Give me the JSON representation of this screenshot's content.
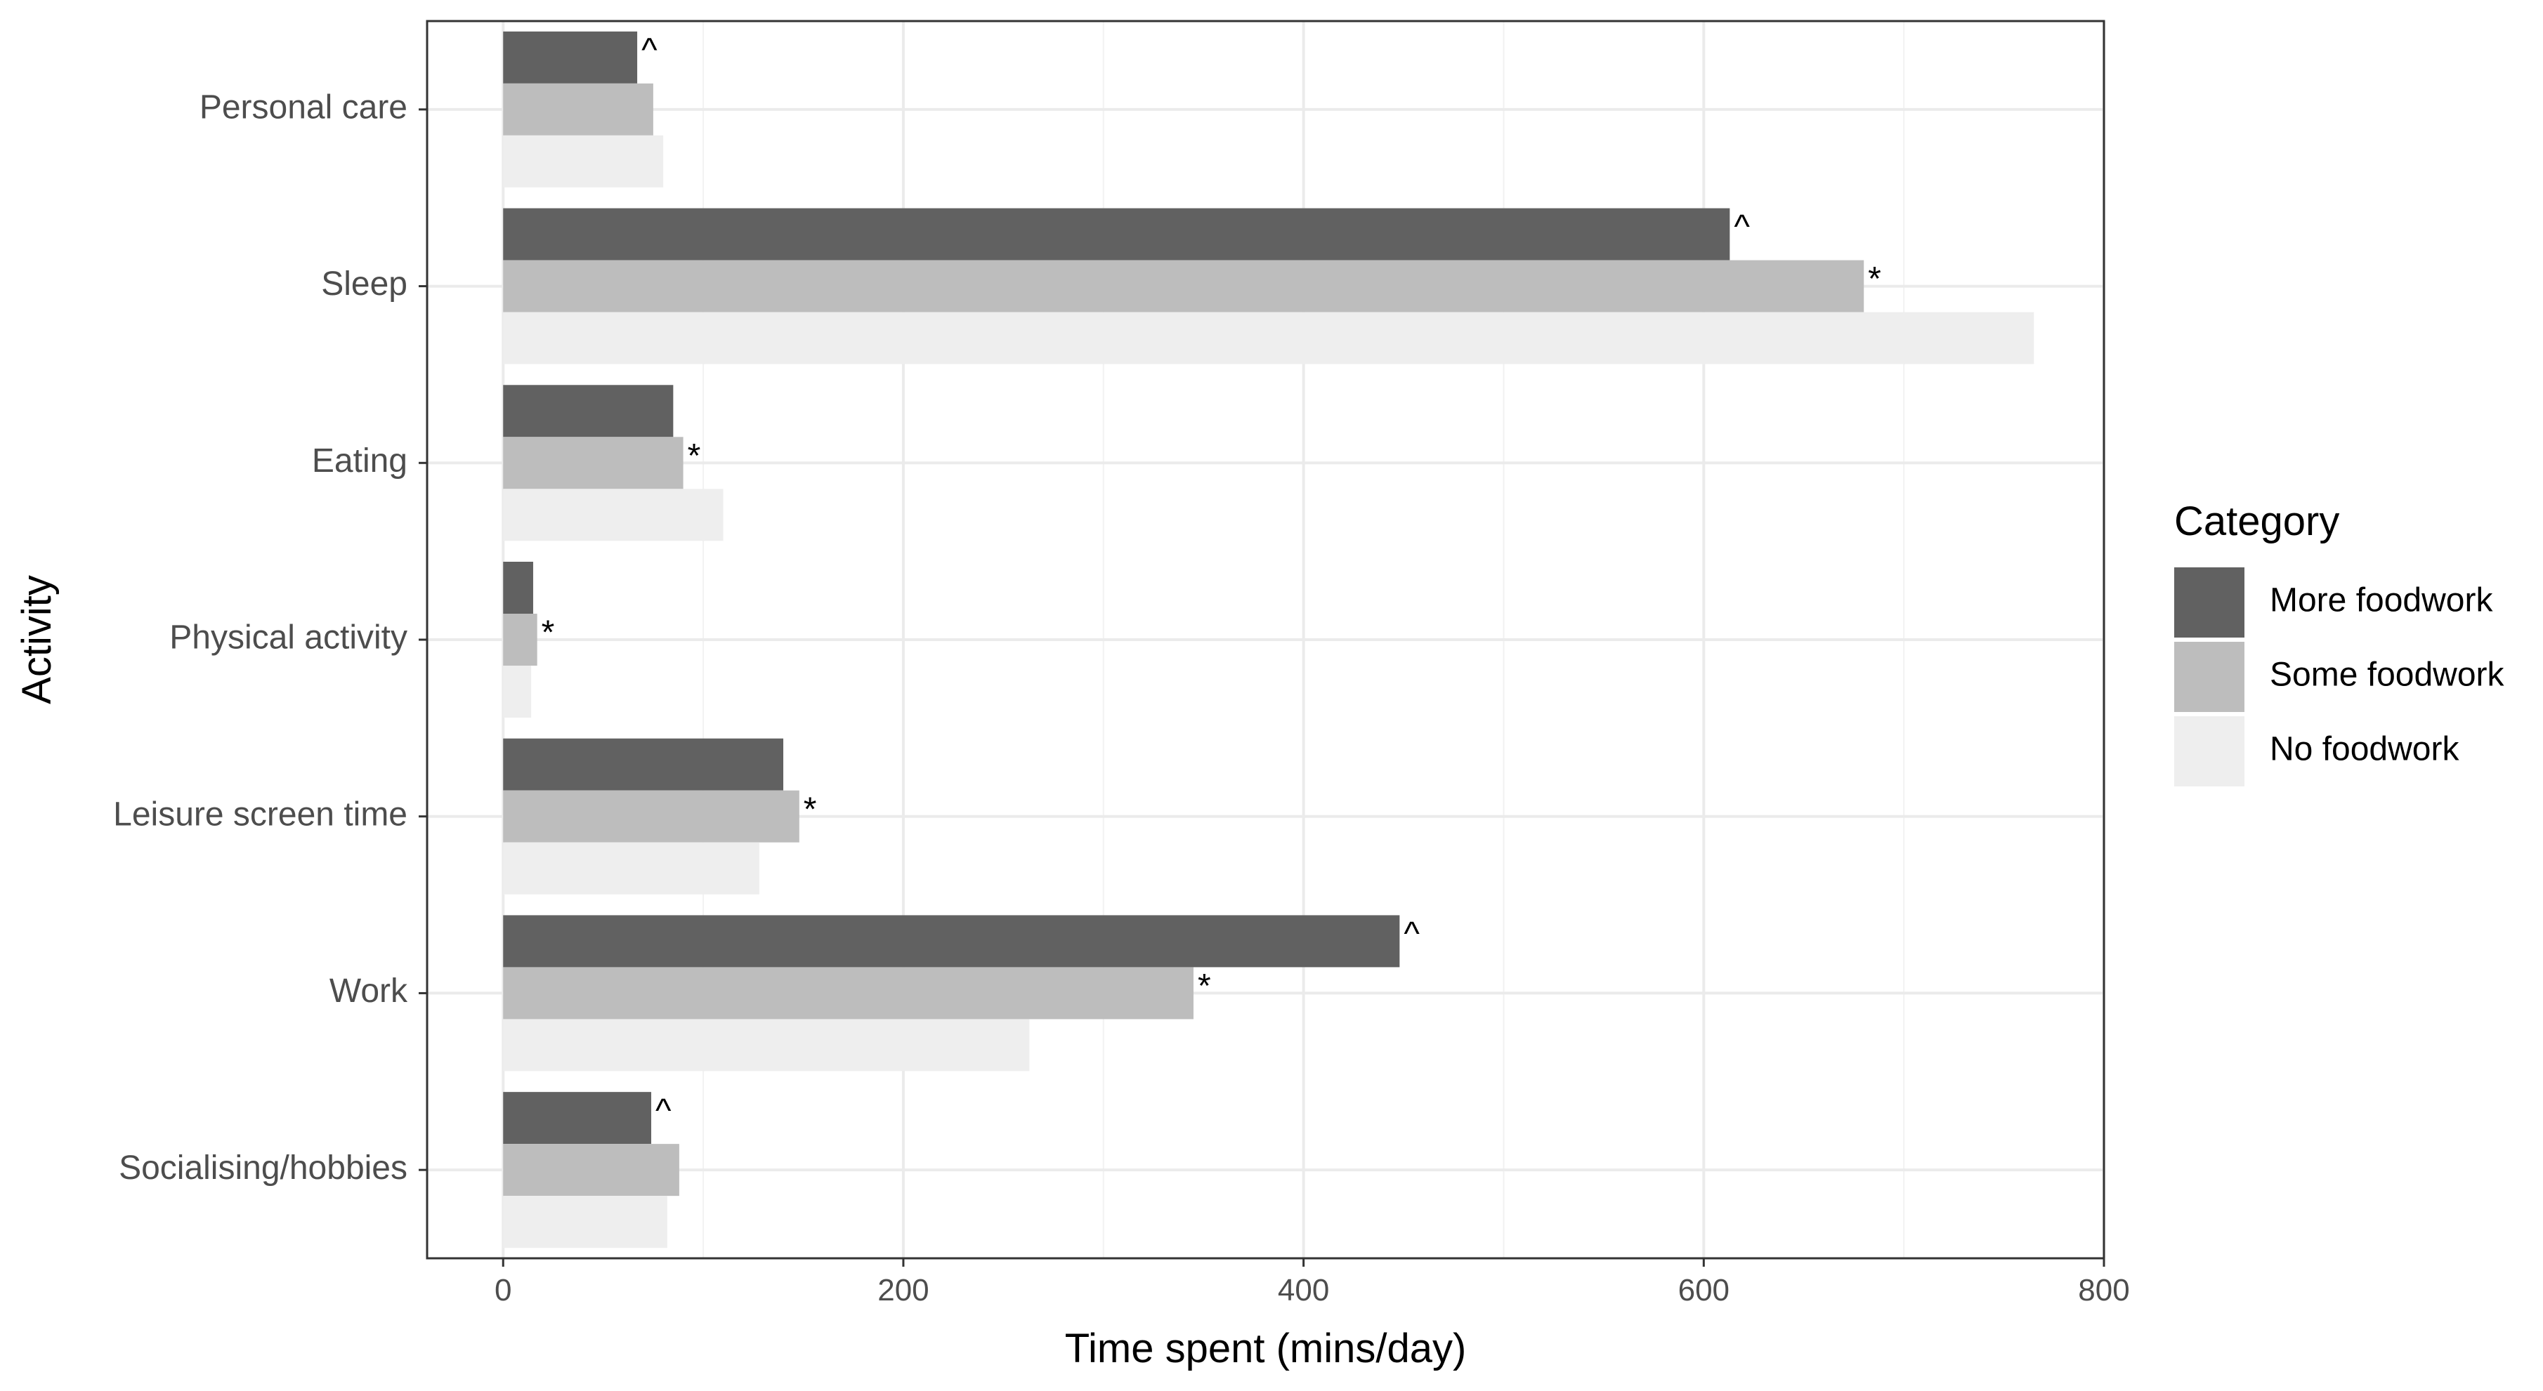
{
  "chart_data": {
    "type": "bar",
    "orientation": "horizontal",
    "xlabel": "Time spent (mins/day)",
    "ylabel": "Activity",
    "xlim": [
      -38,
      800
    ],
    "xticks": [
      0,
      200,
      400,
      600,
      800
    ],
    "grid": true,
    "legend": {
      "title": "Category",
      "position": "right"
    },
    "categories": [
      "Personal care",
      "Sleep",
      "Eating",
      "Physical activity",
      "Leisure screen time",
      "Work",
      "Socialising/hobbies"
    ],
    "series": [
      {
        "name": "More foodwork",
        "color": "#616161",
        "values": [
          67,
          613,
          85,
          15,
          140,
          448,
          74
        ]
      },
      {
        "name": "Some foodwork",
        "color": "#bdbdbd",
        "values": [
          75,
          680,
          90,
          17,
          148,
          345,
          88
        ]
      },
      {
        "name": "No foodwork",
        "color": "#eeeeee",
        "values": [
          80,
          765,
          110,
          14,
          128,
          263,
          82
        ]
      }
    ],
    "markers": [
      [
        "^",
        "^",
        "",
        "",
        "",
        "^",
        "^"
      ],
      [
        "",
        "*",
        "*",
        "*",
        "*",
        "*",
        ""
      ],
      [
        "",
        "",
        "",
        "",
        "",
        "",
        ""
      ]
    ]
  }
}
